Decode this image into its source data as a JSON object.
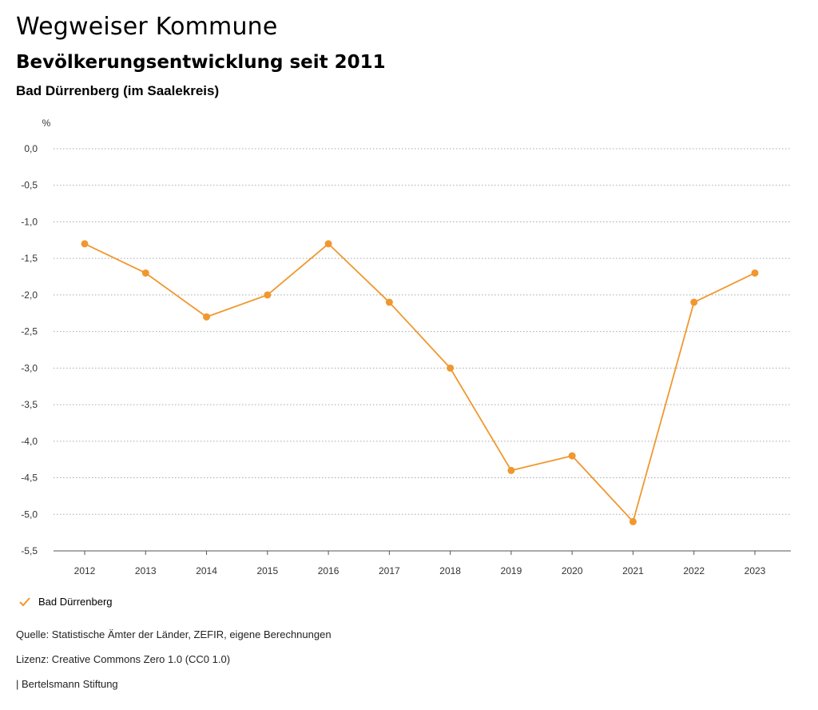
{
  "header": {
    "title": "Wegweiser Kommune",
    "subtitle": "Bevölkerungsentwicklung seit 2011",
    "region": "Bad Dürrenberg (im Saalekreis)"
  },
  "colors": {
    "series": "#F0982F",
    "grid": "#aaaaaa",
    "axis": "#333333"
  },
  "chart_data": {
    "type": "line",
    "title": "Bevölkerungsentwicklung seit 2011",
    "ylabel": "%",
    "xlabel": "",
    "ylim": [
      -5.5,
      0.0
    ],
    "yticks": [
      "0,0",
      "-0,5",
      "-1,0",
      "-1,5",
      "-2,0",
      "-2,5",
      "-3,0",
      "-3,5",
      "-4,0",
      "-4,5",
      "-5,0",
      "-5,5"
    ],
    "ytick_values": [
      0.0,
      -0.5,
      -1.0,
      -1.5,
      -2.0,
      -2.5,
      -3.0,
      -3.5,
      -4.0,
      -4.5,
      -5.0,
      -5.5
    ],
    "categories": [
      "2012",
      "2013",
      "2014",
      "2015",
      "2016",
      "2017",
      "2018",
      "2019",
      "2020",
      "2021",
      "2022",
      "2023"
    ],
    "series": [
      {
        "name": "Bad Dürrenberg",
        "values": [
          -1.3,
          -1.7,
          -2.3,
          -2.0,
          -1.3,
          -2.1,
          -3.0,
          -4.4,
          -4.2,
          -5.1,
          -2.1,
          -1.7
        ]
      }
    ],
    "grid": true,
    "legend": "bottom-left"
  },
  "footer": {
    "source": "Quelle: Statistische Ämter der Länder, ZEFIR, eigene Berechnungen",
    "license": "Lizenz: Creative Commons Zero 1.0 (CC0 1.0)",
    "publisher": "| Bertelsmann Stiftung"
  }
}
